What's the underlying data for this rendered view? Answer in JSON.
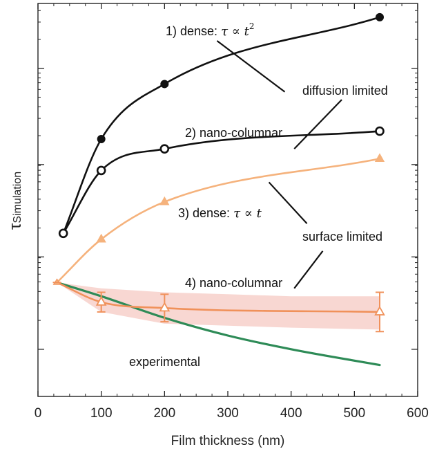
{
  "chart_data": {
    "type": "line",
    "xlabel": "Film thickness (nm)",
    "ylabel_main": "τ",
    "ylabel_sub": "Simulation",
    "xlim": [
      0,
      600
    ],
    "xticks": [
      0,
      100,
      200,
      300,
      400,
      500,
      600
    ],
    "ylim": [
      0,
      1
    ],
    "grid": false,
    "colors": {
      "dense_diffusion": "#111111",
      "nanocolumnar_diffusion": "#111111",
      "dense_surface": "#f5b27c",
      "nanocolumnar_surface": "#f0915a",
      "band": "#f6c9c3",
      "experimental": "#2e8b57"
    },
    "series": [
      {
        "key": "dense_diffusion",
        "marker": "filled-circle",
        "points": [
          [
            40,
            0.415
          ],
          [
            100,
            0.655
          ],
          [
            200,
            0.795
          ],
          [
            540,
            0.965
          ]
        ]
      },
      {
        "key": "nanocolumnar_diffusion",
        "marker": "open-circle",
        "points": [
          [
            40,
            0.415
          ],
          [
            100,
            0.575
          ],
          [
            200,
            0.63
          ],
          [
            540,
            0.675
          ]
        ]
      },
      {
        "key": "dense_surface",
        "marker": "filled-triangle",
        "points": [
          [
            30,
            0.29
          ],
          [
            100,
            0.4
          ],
          [
            200,
            0.495
          ],
          [
            540,
            0.605
          ]
        ]
      },
      {
        "key": "nanocolumnar_surface",
        "marker": "open-triangle",
        "points": [
          [
            30,
            0.29
          ],
          [
            100,
            0.24
          ],
          [
            200,
            0.225
          ],
          [
            540,
            0.215
          ]
        ],
        "errors": [
          0,
          0.025,
          0.035,
          0.05
        ]
      },
      {
        "key": "experimental",
        "marker": "none",
        "points": [
          [
            30,
            0.29
          ],
          [
            100,
            0.255
          ],
          [
            200,
            0.2
          ],
          [
            300,
            0.155
          ],
          [
            400,
            0.12
          ],
          [
            540,
            0.08
          ]
        ]
      }
    ],
    "band": {
      "x": [
        30,
        100,
        200,
        300,
        400,
        540
      ],
      "upper": [
        0.29,
        0.275,
        0.265,
        0.26,
        0.255,
        0.255
      ],
      "lower": [
        0.29,
        0.215,
        0.185,
        0.18,
        0.175,
        0.17
      ]
    },
    "annotations": {
      "a1_prefix": "1) dense: ",
      "a1_math": "τ ∝ t",
      "a1_sup": "2",
      "a2": "2) nano-columnar",
      "a3_prefix": "3) dense: ",
      "a3_math": "τ ∝ t",
      "a4": "4) nano-columnar",
      "diffusion": "diffusion limited",
      "surface": "surface limited",
      "experimental": "experimental"
    }
  }
}
